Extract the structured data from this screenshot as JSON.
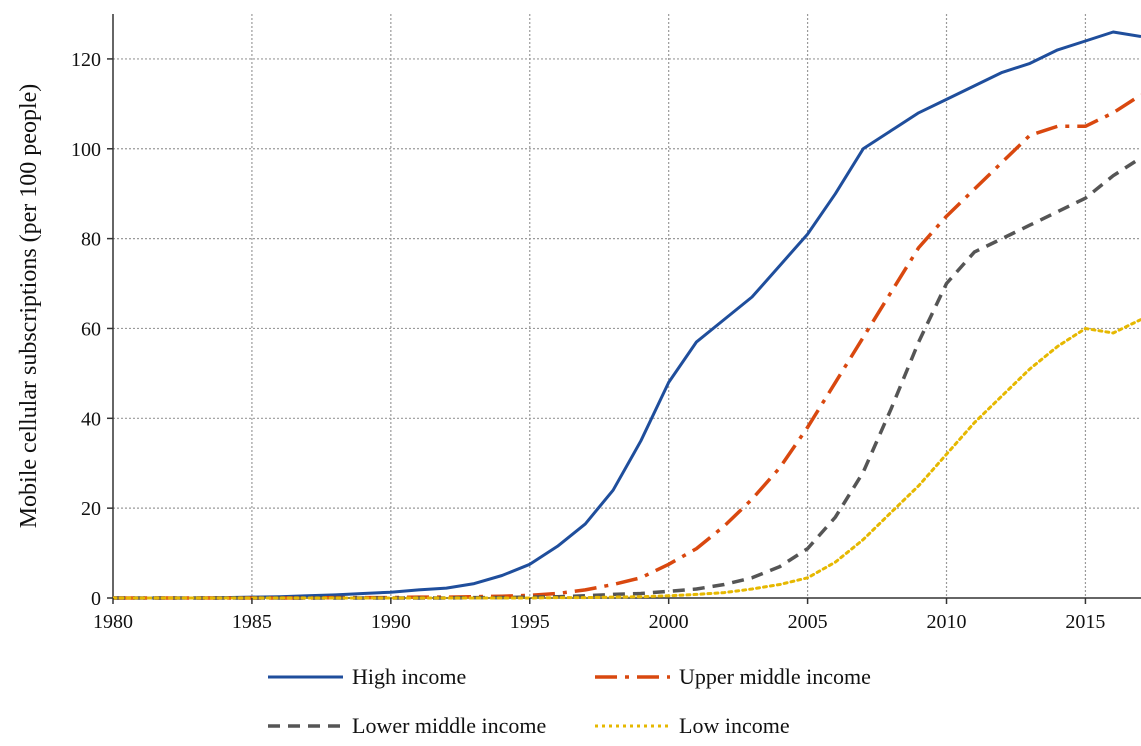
{
  "chart_data": {
    "type": "line",
    "title": "",
    "xlabel": "",
    "ylabel": "Mobile cellular subscriptions (per 100 people)",
    "xlim": [
      1980,
      2017
    ],
    "ylim": [
      0,
      130
    ],
    "xticks": [
      1980,
      1985,
      1990,
      1995,
      2000,
      2005,
      2010,
      2015
    ],
    "yticks": [
      0,
      20,
      40,
      60,
      80,
      100,
      120
    ],
    "grid": true,
    "legend_position": "bottom",
    "x": [
      1980,
      1981,
      1982,
      1983,
      1984,
      1985,
      1986,
      1987,
      1988,
      1989,
      1990,
      1991,
      1992,
      1993,
      1994,
      1995,
      1996,
      1997,
      1998,
      1999,
      2000,
      2001,
      2002,
      2003,
      2004,
      2005,
      2006,
      2007,
      2008,
      2009,
      2010,
      2011,
      2012,
      2013,
      2014,
      2015,
      2016,
      2017
    ],
    "series": [
      {
        "name": "High income",
        "color": "#1f4e9c",
        "style": "solid",
        "values": [
          0,
          0,
          0,
          0,
          0.1,
          0.2,
          0.3,
          0.5,
          0.7,
          1.0,
          1.3,
          1.8,
          2.2,
          3.2,
          5.0,
          7.5,
          11.5,
          16.5,
          24,
          35,
          48,
          57,
          62,
          67,
          74,
          81,
          90,
          100,
          104,
          108,
          111,
          114,
          117,
          119,
          122,
          124,
          126,
          125
        ]
      },
      {
        "name": "Upper middle income",
        "color": "#d9480f",
        "style": "dashdot",
        "values": [
          0,
          0,
          0,
          0,
          0,
          0,
          0,
          0,
          0.1,
          0.1,
          0.1,
          0.2,
          0.2,
          0.3,
          0.4,
          0.6,
          1.0,
          1.8,
          3.0,
          4.5,
          7.5,
          11,
          16,
          22,
          29,
          38,
          48,
          58,
          68,
          78,
          85,
          91,
          97,
          103,
          105,
          105,
          108,
          112
        ]
      },
      {
        "name": "Lower middle income",
        "color": "#555555",
        "style": "dashed",
        "values": [
          0,
          0,
          0,
          0,
          0,
          0,
          0,
          0,
          0,
          0,
          0,
          0,
          0,
          0.1,
          0.1,
          0.2,
          0.3,
          0.5,
          0.8,
          1.0,
          1.5,
          2.0,
          3.0,
          4.5,
          7.0,
          11,
          18,
          28,
          42,
          57,
          70,
          77,
          80,
          83,
          86,
          89,
          94,
          98
        ]
      },
      {
        "name": "Low income",
        "color": "#e6b800",
        "style": "dotted",
        "values": [
          0,
          0,
          0,
          0,
          0,
          0,
          0,
          0,
          0,
          0,
          0,
          0,
          0,
          0,
          0,
          0,
          0.1,
          0.1,
          0.2,
          0.3,
          0.5,
          0.8,
          1.2,
          2.0,
          3.0,
          4.5,
          8.0,
          13,
          19,
          25,
          32,
          39,
          45,
          51,
          56,
          60,
          59,
          62
        ]
      }
    ]
  }
}
